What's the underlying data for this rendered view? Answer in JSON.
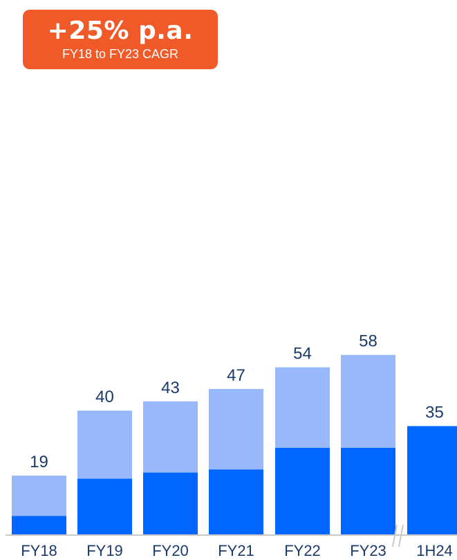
{
  "badge": {
    "headline": "+25% p.a.",
    "subtitle": "FY18 to FY23 CAGR",
    "color": "#f05a28"
  },
  "colors": {
    "bottom_segment": "#0066ff",
    "top_segment": "#99b8fb",
    "label_text": "#1a3a6b",
    "axis": "#c8c8c8",
    "break_marks": "#c8c8c8"
  },
  "chart_data": {
    "type": "bar",
    "stacked": true,
    "categories": [
      "FY18",
      "FY19",
      "FY20",
      "FY21",
      "FY22",
      "FY23",
      "1H24"
    ],
    "series": [
      {
        "values": [
          6,
          18,
          20,
          21,
          28,
          28,
          35
        ]
      },
      {
        "values": [
          13,
          22,
          23,
          26,
          26,
          30,
          0
        ]
      }
    ],
    "totals": [
      "19",
      "40",
      "43",
      "47",
      "54",
      "58",
      "35"
    ],
    "axis_break_between": [
      "FY23",
      "1H24"
    ],
    "ylim": [
      0,
      75
    ],
    "grid": false,
    "legend": "none"
  }
}
